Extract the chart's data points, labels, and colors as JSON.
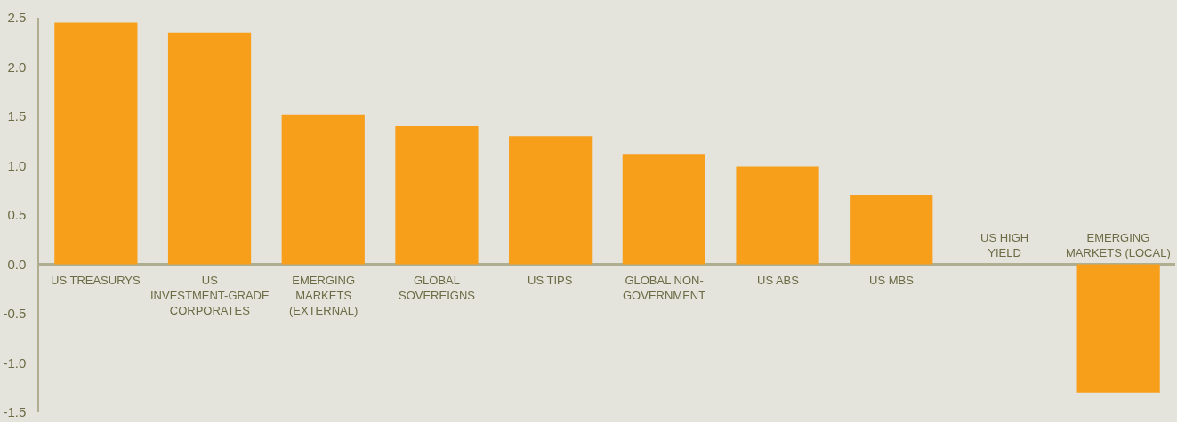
{
  "chart_data": {
    "type": "bar",
    "categories": [
      "US TREASURYS",
      "US\nINVESTMENT-GRADE\nCORPORATES",
      "EMERGING\nMARKETS\n(EXTERNAL)",
      "GLOBAL\nSOVEREIGNS",
      "US TIPS",
      "GLOBAL NON-\nGOVERNMENT",
      "US ABS",
      "US MBS",
      "US HIGH\nYIELD",
      "EMERGING\nMARKETS (LOCAL)"
    ],
    "values": [
      2.45,
      2.35,
      1.52,
      1.4,
      1.3,
      1.12,
      0.99,
      0.7,
      0.0,
      -1.3
    ],
    "color": "#f79e1b",
    "ylim": [
      -1.5,
      2.5
    ],
    "yticks": [
      {
        "value": -1.5,
        "label": "-1.5"
      },
      {
        "value": -1.0,
        "label": "-1.0"
      },
      {
        "value": -0.5,
        "label": "-0.5"
      },
      {
        "value": 0,
        "label": "0.0"
      },
      {
        "value": 0.5,
        "label": "0.5"
      },
      {
        "value": 1.0,
        "label": "1.0"
      },
      {
        "value": 1.5,
        "label": "1.5"
      },
      {
        "value": 2.0,
        "label": "2.0"
      },
      {
        "value": 2.5,
        "label": "2.5"
      }
    ],
    "grid": false
  }
}
